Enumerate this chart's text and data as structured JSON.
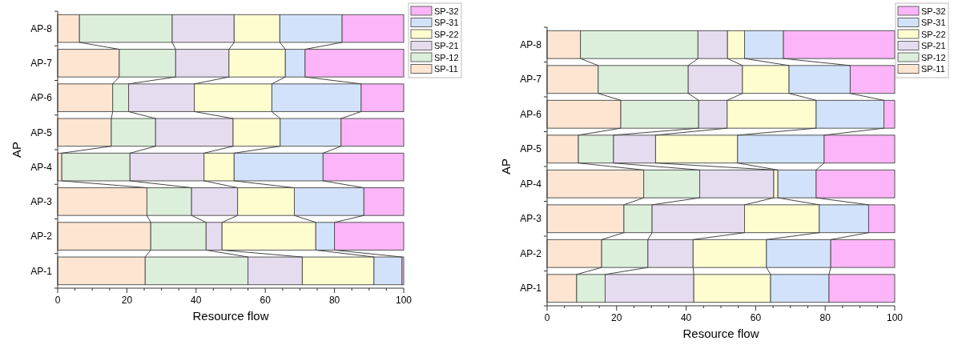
{
  "chart_data": [
    {
      "type": "bar",
      "orientation": "horizontal",
      "stacked": true,
      "xlabel": "Resource flow",
      "ylabel": "AP",
      "legend": "top right",
      "categories": [
        "AP-8",
        "AP-7",
        "AP-6",
        "AP-5",
        "AP-4",
        "AP-3",
        "AP-2",
        "AP-1"
      ],
      "xlim": [
        0,
        100
      ],
      "xticks": [
        0,
        {
          "value": 5,
          "label": null
        },
        {
          "value": 10,
          "label": null
        },
        {
          "value": 15,
          "label": null
        },
        20,
        {
          "value": 25,
          "label": null
        },
        {
          "value": 30,
          "label": null
        },
        {
          "value": 35,
          "label": null
        },
        40,
        {
          "value": 45,
          "label": null
        },
        {
          "value": 50,
          "label": null
        },
        {
          "value": 55,
          "label": null
        },
        60,
        {
          "value": 65,
          "label": null
        },
        {
          "value": 70,
          "label": null
        },
        {
          "value": 75,
          "label": null
        },
        80,
        {
          "value": 85,
          "label": null
        },
        {
          "value": 90,
          "label": null
        },
        {
          "value": 95,
          "label": null
        },
        100
      ],
      "series": [
        {
          "name": "SP-11",
          "color": "#fde5d1",
          "values": [
            6.3,
            17.8,
            15.9,
            15.5,
            1.2,
            25.8,
            26.9,
            25.3
          ]
        },
        {
          "name": "SP-12",
          "color": "#dcefdb",
          "values": [
            26.8,
            16.3,
            4.6,
            12.8,
            19.7,
            12.9,
            16.0,
            29.7
          ]
        },
        {
          "name": "SP-21",
          "color": "#e6dcef",
          "values": [
            17.9,
            15.4,
            19.0,
            22.4,
            21.4,
            13.3,
            4.6,
            15.7
          ]
        },
        {
          "name": "SP-22",
          "color": "#fefdd0",
          "values": [
            13.2,
            16.3,
            22.4,
            13.6,
            8.7,
            16.4,
            27.1,
            20.7
          ]
        },
        {
          "name": "SP-31",
          "color": "#d3e2fb",
          "values": [
            18.0,
            5.7,
            25.8,
            17.6,
            25.7,
            20.1,
            5.4,
            8.1
          ]
        },
        {
          "name": "SP-32",
          "color": "#fcb5f8",
          "values": [
            17.8,
            28.5,
            12.3,
            18.1,
            23.3,
            11.5,
            20.0,
            0.5
          ]
        }
      ]
    },
    {
      "type": "bar",
      "orientation": "horizontal",
      "stacked": true,
      "xlabel": "Resource flow",
      "ylabel": "AP",
      "legend": "top right",
      "categories": [
        "AP-8",
        "AP-7",
        "AP-6",
        "AP-5",
        "AP-4",
        "AP-3",
        "AP-2",
        "AP-1"
      ],
      "xlim": [
        0,
        100
      ],
      "xticks": [
        0,
        {
          "value": 5,
          "label": null
        },
        {
          "value": 10,
          "label": null
        },
        {
          "value": 15,
          "label": null
        },
        20,
        {
          "value": 25,
          "label": null
        },
        {
          "value": 30,
          "label": null
        },
        {
          "value": 35,
          "label": null
        },
        40,
        {
          "value": 45,
          "label": null
        },
        {
          "value": 50,
          "label": null
        },
        {
          "value": 55,
          "label": null
        },
        60,
        {
          "value": 65,
          "label": null
        },
        {
          "value": 70,
          "label": null
        },
        {
          "value": 75,
          "label": null
        },
        80,
        {
          "value": 85,
          "label": null
        },
        {
          "value": 90,
          "label": null
        },
        {
          "value": 95,
          "label": null
        },
        100
      ],
      "series": [
        {
          "name": "SP-11",
          "color": "#fde5d1",
          "values": [
            9.6,
            14.7,
            21.2,
            9.0,
            27.8,
            22.1,
            15.7,
            8.5
          ]
        },
        {
          "name": "SP-12",
          "color": "#dcefdb",
          "values": [
            33.8,
            25.9,
            22.4,
            10.1,
            16.1,
            8.1,
            13.3,
            8.2
          ]
        },
        {
          "name": "SP-21",
          "color": "#e6dcef",
          "values": [
            8.5,
            15.6,
            8.2,
            12.1,
            21.3,
            26.6,
            13.0,
            25.5
          ]
        },
        {
          "name": "SP-22",
          "color": "#fefdd0",
          "values": [
            4.9,
            13.4,
            25.6,
            23.6,
            1.2,
            21.5,
            21.1,
            22.1
          ]
        },
        {
          "name": "SP-31",
          "color": "#d3e2fb",
          "values": [
            11.2,
            17.6,
            19.5,
            24.9,
            11.0,
            14.2,
            18.5,
            16.8
          ]
        },
        {
          "name": "SP-32",
          "color": "#fcb5f8",
          "values": [
            32.0,
            12.8,
            3.1,
            20.3,
            22.6,
            7.5,
            18.4,
            18.9
          ]
        }
      ]
    }
  ]
}
